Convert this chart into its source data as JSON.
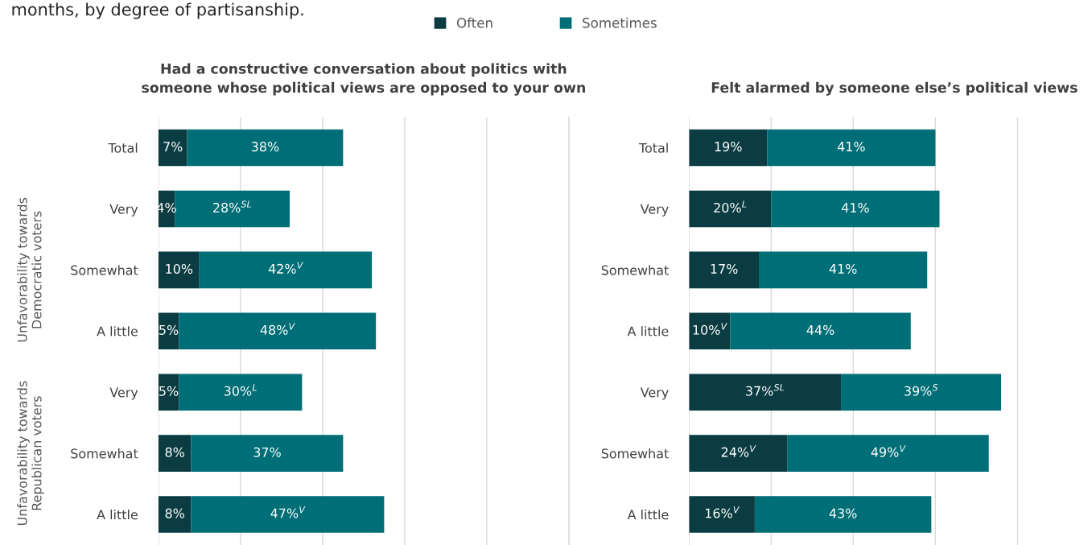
{
  "chart_data": [
    {
      "type": "bar",
      "orientation": "horizontal",
      "stacked": true,
      "title": "Had a constructive conversation about politics with\nsomeone whose political views are opposed to your own",
      "annotations": [
        "months, by degree of partisanship.",
        "Unfavorability towards\nDemocratic voters",
        "Unfavorability towards\nRepublican voters"
      ],
      "categories": [
        "Total",
        "Very",
        "Somewhat",
        "A little",
        "Very",
        "Somewhat",
        "A little"
      ],
      "series": [
        {
          "name": "Often",
          "color": "#0b3c42",
          "values": [
            7,
            4,
            10,
            5,
            5,
            8,
            8
          ],
          "value_labels": [
            "7%",
            "4%",
            "10%",
            "5%",
            "5%",
            "8%",
            "8%"
          ]
        },
        {
          "name": "Sometimes",
          "color": "#006e76",
          "values": [
            38,
            28,
            42,
            48,
            30,
            37,
            47
          ],
          "value_labels": [
            "38%",
            "28%$^{SL}$",
            "42%$^{V}$",
            "48%$^{V}$",
            "30%$^{L}$",
            "37%",
            "47%$^{V}$"
          ]
        }
      ],
      "xlim": [
        0,
        100
      ],
      "xticks": [
        {
          "value": 0,
          "label": null
        },
        {
          "value": 20,
          "label": null
        },
        {
          "value": 40,
          "label": null
        },
        {
          "value": 60,
          "label": null
        },
        {
          "value": 80,
          "label": null
        },
        {
          "value": 100,
          "label": null
        }
      ],
      "grid": "x",
      "tick_labels": "y",
      "legend": "top"
    },
    {
      "type": "bar",
      "orientation": "horizontal",
      "stacked": true,
      "title": "Felt alarmed by someone else’s political views",
      "categories": [
        "Total",
        "Very",
        "Somewhat",
        "A little",
        "Very",
        "Somewhat",
        "A little"
      ],
      "series": [
        {
          "color": "#0b3c42",
          "values": [
            19,
            20,
            17,
            10,
            37,
            24,
            16
          ],
          "value_labels": [
            "19%",
            "20%$^{L}$",
            "17%",
            "10%$^{V}$",
            "37%$^{SL}$",
            "24%$^{V}$",
            "16%$^{V}$"
          ]
        },
        {
          "color": "#006e76",
          "values": [
            41,
            41,
            41,
            44,
            39,
            49,
            43
          ],
          "value_labels": [
            "41%",
            "41%",
            "41%",
            "44%",
            "39%$^{S}$",
            "49%$^{V}$",
            "43%"
          ]
        }
      ],
      "xticks": [
        {
          "value": 0,
          "label": null
        },
        {
          "value": 20,
          "label": null
        },
        {
          "value": 40,
          "label": null
        },
        {
          "value": 60,
          "label": null
        },
        {
          "value": 80,
          "label": null
        }
      ],
      "grid": "x",
      "tick_labels": "y"
    }
  ]
}
